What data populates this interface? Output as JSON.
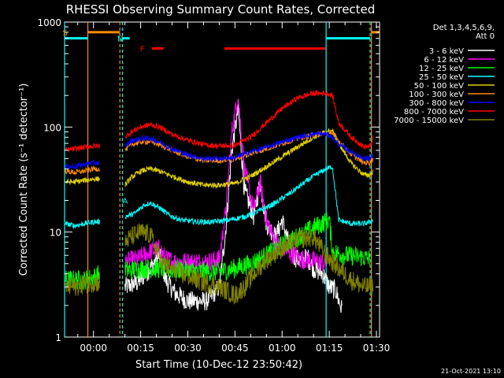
{
  "chart_data": {
    "type": "line",
    "title": "RHESSI Observing Summary Count Rates, Corrected",
    "xlabel": "Start Time (10-Dec-12 23:50:42)",
    "ylabel": "Corrected Count Rate (s⁻¹ detector⁻¹)",
    "yscale": "log",
    "ylim": [
      1,
      1000
    ],
    "xlim_minutes": [
      -9.2,
      91
    ],
    "x_ticks": [
      {
        "min": 0,
        "label": "00:00"
      },
      {
        "min": 15,
        "label": "00:15"
      },
      {
        "min": 30,
        "label": "00:30"
      },
      {
        "min": 45,
        "label": "00:45"
      },
      {
        "min": 60,
        "label": "01:00"
      },
      {
        "min": 75,
        "label": "01:15"
      },
      {
        "min": 90,
        "label": "01:30"
      }
    ],
    "y_ticks": [
      {
        "value": 1,
        "label": "1"
      },
      {
        "value": 10,
        "label": "10"
      },
      {
        "value": 100,
        "label": "100"
      },
      {
        "value": 1000,
        "label": "1000"
      }
    ],
    "legend_header": [
      "Det 1,3,4,5,6,9,",
      "Att 0"
    ],
    "legend_placement": "right",
    "series": [
      {
        "name": "3 - 6 keV",
        "color": "#ffffff",
        "x": [
          10,
          14,
          18,
          21,
          23,
          26,
          30,
          36,
          40,
          42,
          44,
          46,
          48,
          51,
          53,
          55,
          58,
          60,
          62,
          64,
          66,
          68,
          70,
          73,
          75,
          77,
          79
        ],
        "y": [
          3,
          3.3,
          4.5,
          6,
          3.5,
          2.6,
          2.2,
          2.2,
          3,
          10,
          60,
          150,
          25,
          14,
          30,
          12,
          9,
          13,
          8,
          5.8,
          5.3,
          5.8,
          4.5,
          4,
          3,
          2.8,
          1.8
        ]
      },
      {
        "name": "6 - 12 keV",
        "color": "#ff00ff",
        "x": [
          10,
          14,
          18,
          21,
          23,
          26,
          30,
          36,
          40,
          42,
          44,
          46,
          48,
          51,
          53,
          55,
          58,
          60,
          62,
          64,
          66,
          68,
          70,
          72,
          74
        ],
        "y": [
          5.2,
          5.5,
          6.5,
          7,
          5.5,
          5.2,
          5.2,
          5.2,
          5.5,
          15,
          90,
          200,
          40,
          16,
          30,
          13,
          8,
          7,
          6.5,
          6,
          5.5,
          5.5,
          5.3,
          5.2,
          5
        ]
      },
      {
        "name": "12 - 25 keV",
        "color": "#00ff00",
        "x": [
          -9,
          -6,
          -3,
          0,
          2,
          10,
          15,
          20,
          25,
          30,
          35,
          40,
          45,
          50,
          55,
          60,
          65,
          70,
          75,
          76,
          80,
          85,
          88
        ],
        "y": [
          3.5,
          3.5,
          3.5,
          3.7,
          4,
          4.3,
          4.5,
          4.5,
          4.4,
          4.3,
          4.2,
          4.2,
          4.5,
          5,
          6,
          7.5,
          9,
          11,
          13,
          6.5,
          6,
          5.8,
          5.5
        ]
      },
      {
        "name": "25 - 50 keV",
        "color": "#00ffff",
        "x": [
          -9,
          -6,
          -3,
          0,
          2,
          10,
          13,
          16,
          18,
          21,
          24,
          28,
          33,
          38,
          43,
          48,
          53,
          58,
          63,
          66,
          70,
          74,
          76,
          78,
          82,
          86,
          88,
          89
        ],
        "y": [
          12,
          11.5,
          12,
          12.5,
          12.5,
          14,
          15,
          18,
          19,
          17,
          14.5,
          13,
          12.5,
          12.5,
          13,
          14,
          16,
          19,
          24,
          28,
          34,
          40,
          42,
          13,
          12,
          12,
          12.5,
          13
        ]
      },
      {
        "name": "50 - 100 keV",
        "color": "#e0d000",
        "x": [
          -9,
          -6,
          -3,
          0,
          2,
          10,
          12,
          15,
          18,
          21,
          25,
          30,
          35,
          40,
          45,
          50,
          55,
          60,
          65,
          70,
          74,
          76,
          78,
          82,
          86,
          88,
          89
        ],
        "y": [
          30,
          30,
          31,
          32,
          32,
          28,
          33,
          38,
          40,
          38,
          34,
          30,
          28,
          28,
          29,
          34,
          42,
          52,
          65,
          80,
          90,
          92,
          70,
          45,
          35,
          35,
          38
        ]
      },
      {
        "name": "100 - 300 keV",
        "color": "#ff8c00",
        "x": [
          -9,
          -6,
          -3,
          0,
          2,
          10,
          12,
          15,
          18,
          21,
          25,
          30,
          35,
          40,
          45,
          50,
          55,
          60,
          65,
          70,
          74,
          76,
          78,
          82,
          86,
          88,
          89
        ],
        "y": [
          38,
          37,
          38,
          40,
          40,
          60,
          68,
          72,
          73,
          68,
          60,
          52,
          48,
          48,
          50,
          56,
          62,
          70,
          78,
          84,
          88,
          88,
          74,
          55,
          46,
          46,
          50
        ]
      },
      {
        "name": "300 - 800 keV",
        "color": "#0000ff",
        "x": [
          -9,
          -6,
          -3,
          0,
          2,
          10,
          12,
          15,
          18,
          21,
          25,
          30,
          35,
          40,
          45,
          50,
          55,
          60,
          65,
          70,
          74,
          76,
          78,
          82,
          86,
          88,
          89
        ],
        "y": [
          42,
          42,
          44,
          46,
          45,
          65,
          74,
          78,
          78,
          72,
          62,
          54,
          50,
          50,
          51,
          58,
          64,
          72,
          80,
          86,
          86,
          80,
          68,
          58,
          50,
          50,
          55
        ]
      },
      {
        "name": "800 - 7000 keV",
        "color": "#ff0000",
        "x": [
          -9,
          -6,
          -3,
          0,
          2,
          10,
          12,
          15,
          18,
          21,
          25,
          30,
          35,
          40,
          45,
          50,
          55,
          60,
          65,
          70,
          74,
          76,
          78,
          82,
          86,
          88,
          89
        ],
        "y": [
          60,
          62,
          64,
          66,
          66,
          80,
          90,
          100,
          105,
          100,
          85,
          75,
          68,
          66,
          67,
          80,
          110,
          150,
          190,
          210,
          210,
          200,
          110,
          80,
          65,
          65,
          80
        ]
      },
      {
        "name": "7000 - 15000 keV",
        "color": "#808000",
        "x": [
          -9,
          -6,
          -3,
          0,
          2,
          10,
          12,
          15,
          18,
          22,
          26,
          30,
          35,
          40,
          42,
          45,
          48,
          51,
          55,
          60,
          65,
          70,
          74,
          78,
          82,
          86,
          89
        ],
        "y": [
          3,
          3,
          3.2,
          3.3,
          3.3,
          8,
          9,
          10,
          9.5,
          5,
          4.2,
          3.8,
          3.3,
          3,
          2.8,
          2.5,
          3,
          4,
          5.5,
          7,
          8.5,
          9,
          6,
          4.5,
          3.5,
          3,
          3
        ]
      }
    ],
    "annotations": [
      {
        "text": "S",
        "color": "#ff8c00",
        "x_min": -9,
        "y": 800
      },
      {
        "text": "N",
        "color": "#00ffff",
        "x_min": 8.5,
        "y": 700
      },
      {
        "text": "F",
        "color": "#ff0000",
        "x_min": 15.5,
        "y": 560
      },
      {
        "text": "A",
        "color": "#00ffff",
        "x_min": 10,
        "y": 20
      }
    ],
    "status_bars": [
      {
        "name": "saa",
        "color": "#ff8c00",
        "x_from": -1.8,
        "x_to": 8.4,
        "y": 800
      },
      {
        "name": "saa",
        "color": "#ff8c00",
        "x_from": 88.4,
        "x_to": 91,
        "y": 800
      },
      {
        "name": "night",
        "color": "#00ffff",
        "x_from": -9.2,
        "x_to": -1.8,
        "y": 700
      },
      {
        "name": "night",
        "color": "#00ffff",
        "x_from": 9.2,
        "x_to": 11.5,
        "y": 700
      },
      {
        "name": "night",
        "color": "#00ffff",
        "x_from": 74,
        "x_to": 88,
        "y": 700
      },
      {
        "name": "flare",
        "color": "#ff0000",
        "x_from": 18.6,
        "x_to": 22.3,
        "y": 560
      },
      {
        "name": "flare",
        "color": "#ff0000",
        "x_from": 41.6,
        "x_to": 73.8,
        "y": 560
      }
    ],
    "vertical_lines": [
      {
        "x_min": -9.2,
        "color": "#00ffff",
        "style": "solid"
      },
      {
        "x_min": -1.8,
        "color": "#ff8c00",
        "style": "solid"
      },
      {
        "x_min": 8.4,
        "color": "#ff8c00",
        "style": "dashed"
      },
      {
        "x_min": 9.2,
        "color": "#00ffff",
        "style": "dashed"
      },
      {
        "x_min": 74,
        "color": "#00ffff",
        "style": "solid"
      },
      {
        "x_min": 88,
        "color": "#00ffff",
        "style": "dashed"
      },
      {
        "x_min": 88.4,
        "color": "#ff8c00",
        "style": "solid"
      }
    ],
    "gaps": [
      {
        "from": 2,
        "to": 10
      }
    ]
  },
  "footer": {
    "timestamp": "21-Oct-2021 13:10"
  }
}
